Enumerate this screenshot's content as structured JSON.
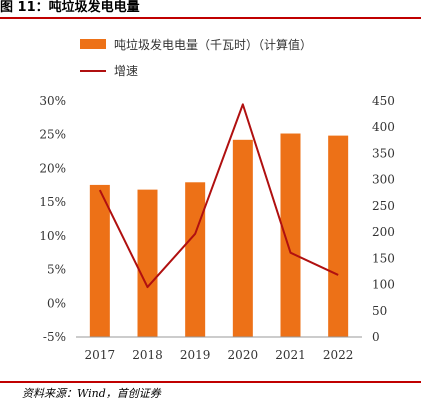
{
  "figure": {
    "title": "图 11：吨垃圾发电电量",
    "source": "资料来源：Wind，首创证券"
  },
  "colors": {
    "bar": "#ed7117",
    "line": "#b01010",
    "accent": "#c00000"
  },
  "chart_data": {
    "type": "bar",
    "categories": [
      "2017",
      "2018",
      "2019",
      "2020",
      "2021",
      "2022"
    ],
    "series": [
      {
        "name": "吨垃圾发电电量（千瓦时）（计算值）",
        "type": "bar",
        "axis": "right",
        "values": [
          290,
          281,
          295,
          376,
          388,
          384
        ]
      },
      {
        "name": "增速",
        "type": "line",
        "axis": "left",
        "values": [
          16.8,
          2.4,
          10.3,
          29.5,
          7.5,
          4.2
        ]
      }
    ],
    "y_left": {
      "ticks": [
        "30%",
        "25%",
        "20%",
        "15%",
        "10%",
        "5%",
        "0%",
        "-5%"
      ],
      "range": [
        -5,
        30
      ]
    },
    "y_right": {
      "ticks": [
        "450",
        "400",
        "350",
        "300",
        "250",
        "200",
        "150",
        "100",
        "50",
        "0"
      ],
      "range": [
        0,
        450
      ]
    },
    "legend_position": "top-left"
  }
}
